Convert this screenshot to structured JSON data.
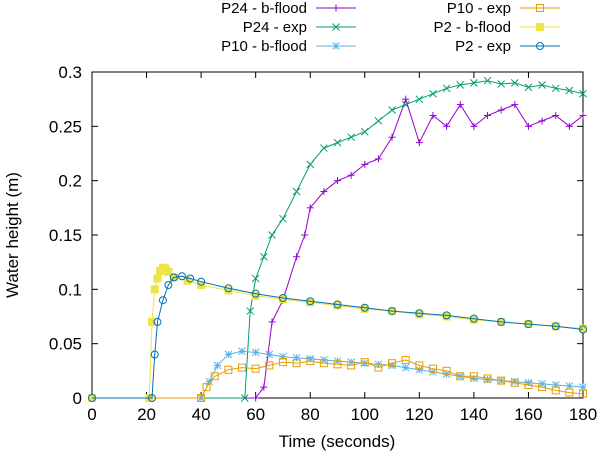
{
  "chart_data": {
    "type": "line",
    "title": "",
    "xlabel": "Time (seconds)",
    "ylabel": "Water height (m)",
    "xlim": [
      0,
      180
    ],
    "ylim": [
      0,
      0.3
    ],
    "x_ticks": [
      0,
      20,
      40,
      60,
      80,
      100,
      120,
      140,
      160,
      180
    ],
    "y_ticks": [
      0,
      0.05,
      0.1,
      0.15,
      0.2,
      0.25,
      0.3
    ],
    "x_tick_labels": [
      "0",
      "20",
      "40",
      "60",
      "80",
      "100",
      "120",
      "140",
      "160",
      "180"
    ],
    "y_tick_labels": [
      "0",
      "0.05",
      "0.1",
      "0.15",
      "0.2",
      "0.25",
      "0.3"
    ],
    "grid": false,
    "legend_position": "top, above plot, two columns",
    "series": [
      {
        "name": "P24 - b-flood",
        "color": "#9400d3",
        "marker": "plus",
        "x": [
          0,
          60,
          63,
          66,
          70,
          75,
          78,
          80,
          85,
          90,
          95,
          100,
          105,
          110,
          115,
          120,
          125,
          130,
          135,
          140,
          145,
          150,
          155,
          160,
          165,
          170,
          175,
          180
        ],
        "y": [
          0,
          0,
          0.01,
          0.07,
          0.09,
          0.13,
          0.15,
          0.175,
          0.19,
          0.2,
          0.205,
          0.215,
          0.22,
          0.24,
          0.275,
          0.235,
          0.26,
          0.25,
          0.27,
          0.25,
          0.26,
          0.265,
          0.27,
          0.25,
          0.255,
          0.26,
          0.25,
          0.26
        ]
      },
      {
        "name": "P24 - exp",
        "color": "#009e73",
        "marker": "cross",
        "x": [
          0,
          56,
          58,
          60,
          63,
          66,
          70,
          75,
          80,
          85,
          90,
          95,
          100,
          105,
          110,
          115,
          120,
          125,
          130,
          135,
          140,
          145,
          150,
          155,
          160,
          165,
          170,
          175,
          180
        ],
        "y": [
          0,
          0,
          0.08,
          0.11,
          0.13,
          0.15,
          0.165,
          0.19,
          0.215,
          0.23,
          0.235,
          0.24,
          0.245,
          0.255,
          0.265,
          0.27,
          0.275,
          0.28,
          0.285,
          0.288,
          0.29,
          0.292,
          0.289,
          0.29,
          0.286,
          0.288,
          0.285,
          0.283,
          0.28
        ]
      },
      {
        "name": "P10 - b-flood",
        "color": "#56b4e9",
        "marker": "star",
        "x": [
          0,
          40,
          43,
          46,
          50,
          55,
          60,
          65,
          70,
          75,
          80,
          85,
          90,
          95,
          100,
          105,
          110,
          115,
          120,
          125,
          130,
          135,
          140,
          145,
          150,
          155,
          160,
          165,
          170,
          175,
          180
        ],
        "y": [
          0,
          0,
          0.015,
          0.03,
          0.04,
          0.043,
          0.042,
          0.04,
          0.038,
          0.037,
          0.036,
          0.035,
          0.034,
          0.033,
          0.032,
          0.031,
          0.03,
          0.028,
          0.026,
          0.024,
          0.022,
          0.02,
          0.018,
          0.017,
          0.016,
          0.015,
          0.014,
          0.013,
          0.012,
          0.011,
          0.01
        ]
      },
      {
        "name": "P10 - exp",
        "color": "#e69f00",
        "marker": "open-square",
        "x": [
          0,
          40,
          42,
          45,
          50,
          55,
          60,
          65,
          70,
          75,
          80,
          85,
          90,
          95,
          100,
          105,
          110,
          115,
          120,
          125,
          130,
          135,
          140,
          145,
          150,
          155,
          160,
          165,
          170,
          175,
          180
        ],
        "y": [
          0,
          0,
          0.01,
          0.02,
          0.026,
          0.028,
          0.027,
          0.03,
          0.033,
          0.032,
          0.034,
          0.032,
          0.031,
          0.03,
          0.033,
          0.028,
          0.032,
          0.035,
          0.03,
          0.027,
          0.025,
          0.02,
          0.02,
          0.018,
          0.016,
          0.014,
          0.012,
          0.01,
          0.007,
          0.005,
          0.004
        ]
      },
      {
        "name": "P2 - b-flood",
        "color": "#f0e442",
        "marker": "filled-square",
        "x": [
          0,
          21,
          22,
          23,
          24,
          25,
          26,
          27,
          28,
          30,
          35,
          40,
          50,
          60,
          70,
          80,
          90,
          100,
          110,
          120,
          130,
          140,
          150,
          160,
          170,
          180
        ],
        "y": [
          0,
          0,
          0.07,
          0.1,
          0.11,
          0.117,
          0.12,
          0.119,
          0.116,
          0.111,
          0.108,
          0.104,
          0.099,
          0.094,
          0.091,
          0.088,
          0.085,
          0.082,
          0.08,
          0.077,
          0.075,
          0.072,
          0.07,
          0.068,
          0.066,
          0.064
        ]
      },
      {
        "name": "P2 - exp",
        "color": "#0072b2",
        "marker": "open-circle",
        "x": [
          0,
          22,
          23,
          24,
          26,
          28,
          30,
          33,
          36,
          40,
          50,
          60,
          70,
          80,
          90,
          100,
          110,
          120,
          130,
          140,
          150,
          160,
          170,
          180
        ],
        "y": [
          0,
          0,
          0.04,
          0.07,
          0.09,
          0.104,
          0.111,
          0.112,
          0.11,
          0.107,
          0.101,
          0.096,
          0.092,
          0.089,
          0.086,
          0.083,
          0.08,
          0.078,
          0.076,
          0.073,
          0.07,
          0.068,
          0.066,
          0.063
        ]
      }
    ]
  }
}
